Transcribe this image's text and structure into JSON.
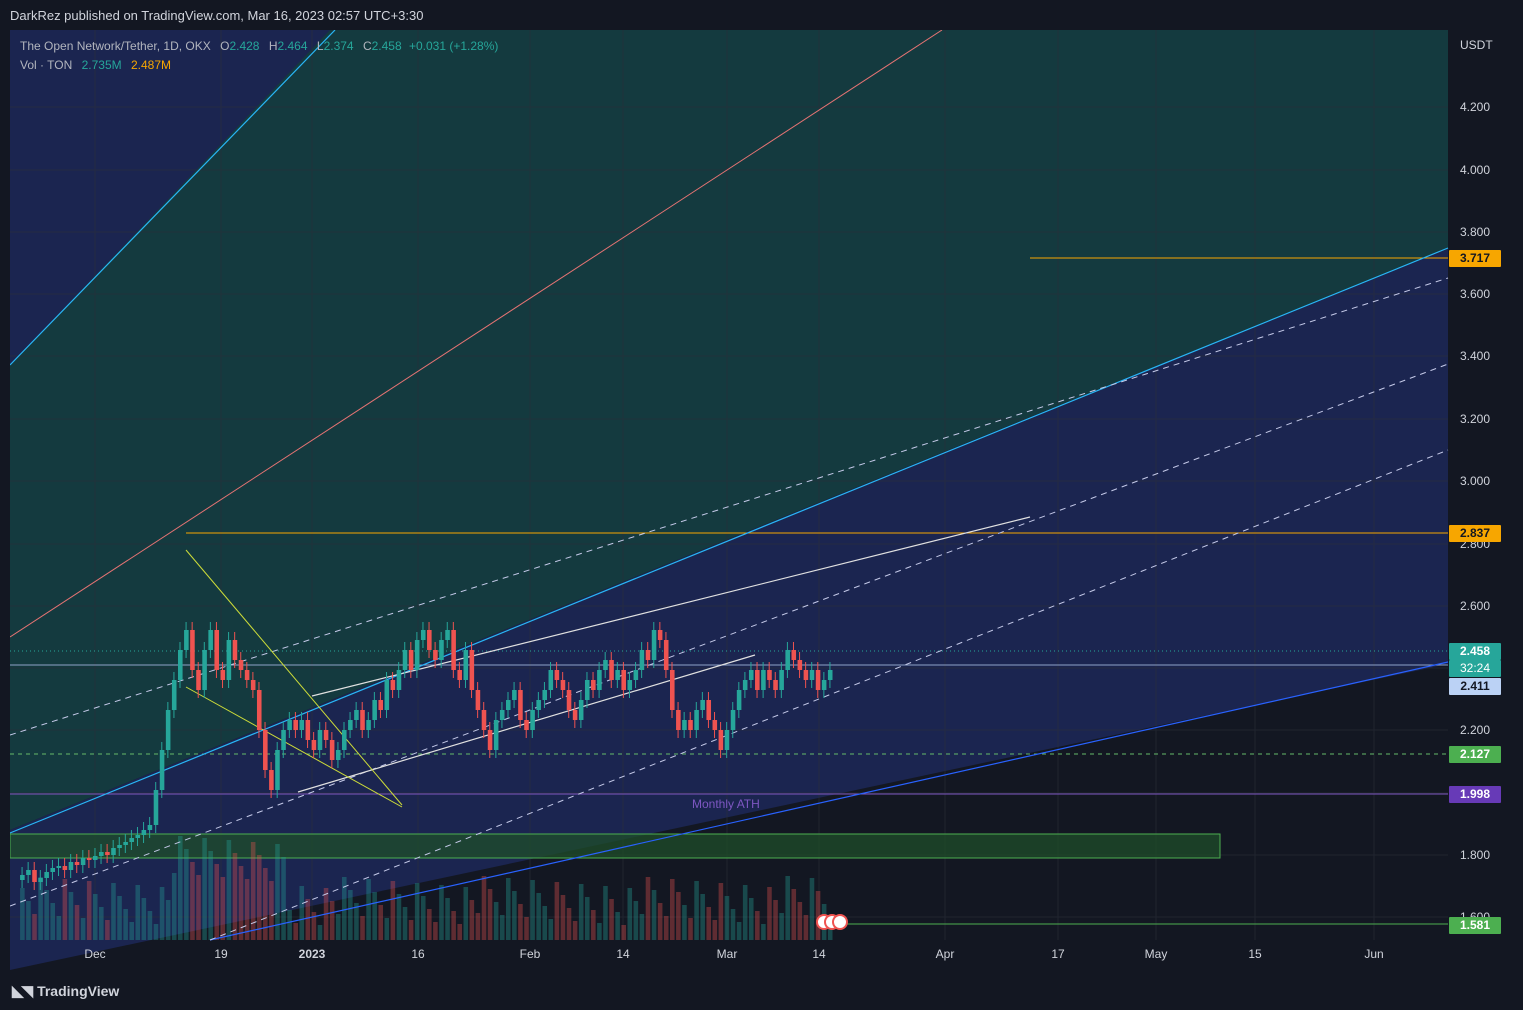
{
  "header": {
    "published": "DarkRez published on TradingView.com, Mar 16, 2023 02:57 UTC+3:30"
  },
  "legend": {
    "symbol": "The Open Network/Tether, 1D, OKX",
    "o_label": "O",
    "o_value": "2.428",
    "h_label": "H",
    "h_value": "2.464",
    "l_label": "L",
    "l_value": "2.374",
    "c_label": "C",
    "c_value": "2.458",
    "change": "+0.031 (+1.28%)",
    "vol_label": "Vol · TON",
    "vol_1": "2.735M",
    "vol_2": "2.487M"
  },
  "price_axis": {
    "unit": "USDT",
    "ticks": [
      "4.200",
      "4.000",
      "3.800",
      "3.600",
      "3.400",
      "3.200",
      "3.000",
      "2.800",
      "2.600",
      "2.200",
      "1.800",
      "1.600"
    ]
  },
  "time_axis": {
    "ticks": [
      "Dec",
      "19",
      "2023",
      "16",
      "Feb",
      "14",
      "Mar",
      "14",
      "Apr",
      "17",
      "May",
      "15",
      "Jun"
    ]
  },
  "price_badges": [
    {
      "name": "level-3-717",
      "text": "3.717",
      "bg": "#f7a600",
      "fg": "#131722"
    },
    {
      "name": "level-2-837",
      "text": "2.837",
      "bg": "#f7a600",
      "fg": "#131722"
    },
    {
      "name": "last-price",
      "text": "2.458",
      "bg": "#26a69a",
      "fg": "#ffffff"
    },
    {
      "name": "countdown",
      "text": "32:24",
      "bg": "#26a69a",
      "fg": "#ffffff"
    },
    {
      "name": "level-2-411",
      "text": "2.411",
      "bg": "#bbd2f5",
      "fg": "#131722"
    },
    {
      "name": "level-2-127",
      "text": "2.127",
      "bg": "#4caf50",
      "fg": "#ffffff"
    },
    {
      "name": "level-1-998",
      "text": "1.998",
      "bg": "#673ab7",
      "fg": "#ffffff"
    },
    {
      "name": "level-1-581",
      "text": "1.581",
      "bg": "#4caf50",
      "fg": "#ffffff"
    }
  ],
  "annotations": {
    "monthly_ath": "Monthly ATH"
  },
  "footer": {
    "brand": "TradingView"
  },
  "colors": {
    "background": "#131722",
    "bull": "#26a69a",
    "bear": "#ef5350",
    "orange_level": "#f7a600",
    "purple_level": "#7e57c2",
    "cyan_channel": "#29b6f6",
    "blue_channel": "#2962ff",
    "red_curve": "#e57373"
  }
}
